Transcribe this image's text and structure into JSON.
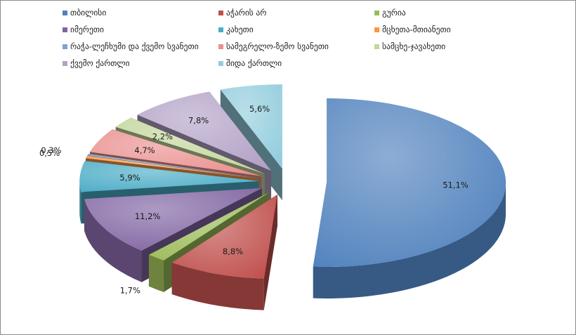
{
  "chart_data": {
    "type": "pie",
    "variant": "3d-exploded",
    "legend_position": "top",
    "slices": [
      {
        "name": "თბილისი",
        "value": 51.1,
        "label": "51,1%",
        "color": "#4f81bd"
      },
      {
        "name": "აჭარის არ",
        "value": 8.8,
        "label": "8,8%",
        "color": "#c0504d"
      },
      {
        "name": "გურია",
        "value": 1.7,
        "label": "1,7%",
        "color": "#9bbb59"
      },
      {
        "name": "იმერეთი",
        "value": 11.2,
        "label": "11,2%",
        "color": "#8064a2"
      },
      {
        "name": "კახეთი",
        "value": 5.9,
        "label": "5,9%",
        "color": "#4bacc6"
      },
      {
        "name": "მცხეთა-მთიანეთი",
        "value": 0.5,
        "label": "0,5%",
        "color": "#f79646"
      },
      {
        "name": "რაჭა-ლეჩხუმი და ქვემო სვანეთი",
        "value": 0.3,
        "label": "0,3%",
        "color": "#7ea3d2"
      },
      {
        "name": "სამეგრელო-ზემო სვანეთი",
        "value": 4.7,
        "label": "4,7%",
        "color": "#e9908e"
      },
      {
        "name": "სამცხე-ჯავახეთი",
        "value": 2.2,
        "label": "2,2%",
        "color": "#c3d69b"
      },
      {
        "name": "ქვემო ქართლი",
        "value": 7.8,
        "label": "7,8%",
        "color": "#b3a2c7"
      },
      {
        "name": "შიდა ქართლი",
        "value": 5.6,
        "label": "5,6%",
        "color": "#93cddd"
      }
    ]
  }
}
